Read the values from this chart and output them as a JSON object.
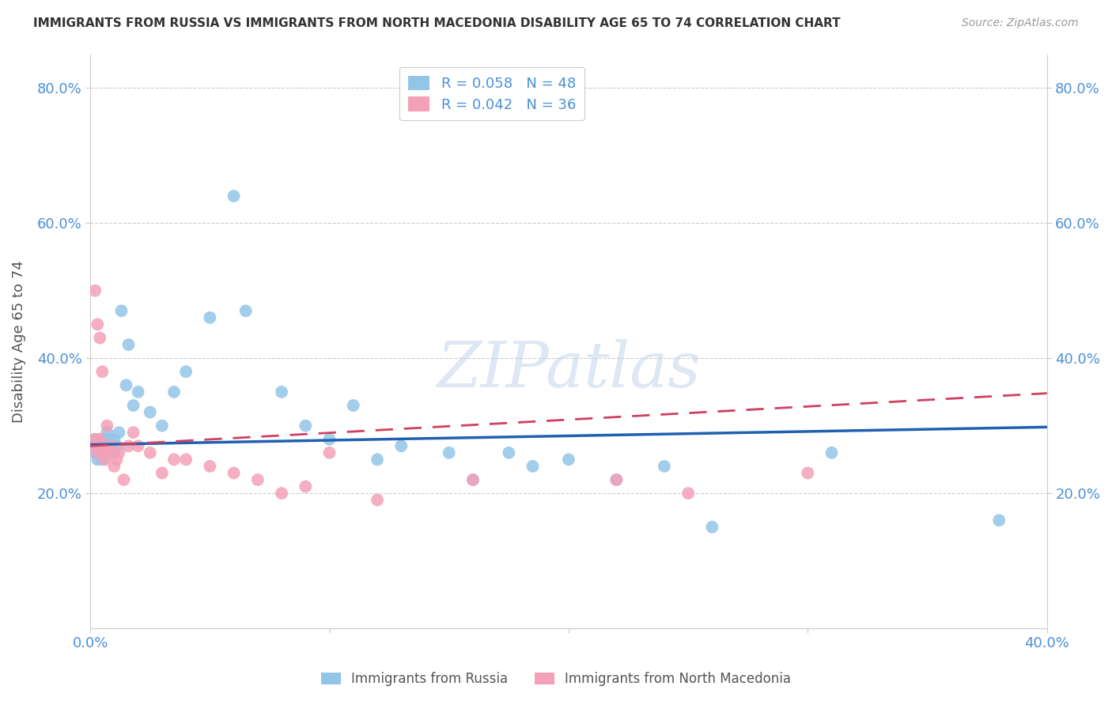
{
  "title": "IMMIGRANTS FROM RUSSIA VS IMMIGRANTS FROM NORTH MACEDONIA DISABILITY AGE 65 TO 74 CORRELATION CHART",
  "source": "Source: ZipAtlas.com",
  "ylabel": "Disability Age 65 to 74",
  "xlim": [
    0.0,
    0.4
  ],
  "ylim": [
    0.0,
    0.85
  ],
  "xticks": [
    0.0,
    0.1,
    0.2,
    0.3,
    0.4
  ],
  "yticks": [
    0.2,
    0.4,
    0.6,
    0.8
  ],
  "xticklabels": [
    "0.0%",
    "",
    "",
    "",
    "40.0%"
  ],
  "yticklabels": [
    "20.0%",
    "40.0%",
    "60.0%",
    "80.0%"
  ],
  "blue_R": 0.058,
  "blue_N": 48,
  "pink_R": 0.042,
  "pink_N": 36,
  "legend1_label": "Immigrants from Russia",
  "legend2_label": "Immigrants from North Macedonia",
  "watermark": "ZIPatlas",
  "blue_color": "#92C5E8",
  "pink_color": "#F4A0B8",
  "blue_line_color": "#2060B0",
  "pink_line_color": "#D04060",
  "background_color": "#FFFFFF",
  "grid_color": "#CCCCCC",
  "title_color": "#333333",
  "axis_label_color": "#555555",
  "tick_color": "#4A90D9",
  "blue_x": [
    0.001,
    0.002,
    0.002,
    0.003,
    0.003,
    0.004,
    0.004,
    0.005,
    0.005,
    0.006,
    0.006,
    0.007,
    0.007,
    0.008,
    0.008,
    0.009,
    0.01,
    0.01,
    0.011,
    0.012,
    0.013,
    0.015,
    0.016,
    0.018,
    0.02,
    0.025,
    0.03,
    0.035,
    0.04,
    0.05,
    0.06,
    0.065,
    0.08,
    0.09,
    0.1,
    0.11,
    0.12,
    0.13,
    0.15,
    0.16,
    0.175,
    0.185,
    0.2,
    0.22,
    0.24,
    0.26,
    0.31,
    0.38
  ],
  "blue_y": [
    0.27,
    0.26,
    0.28,
    0.27,
    0.25,
    0.28,
    0.26,
    0.27,
    0.25,
    0.28,
    0.26,
    0.27,
    0.29,
    0.26,
    0.28,
    0.27,
    0.26,
    0.28,
    0.27,
    0.29,
    0.47,
    0.36,
    0.42,
    0.33,
    0.35,
    0.32,
    0.3,
    0.35,
    0.38,
    0.46,
    0.64,
    0.47,
    0.35,
    0.3,
    0.28,
    0.33,
    0.25,
    0.27,
    0.26,
    0.22,
    0.26,
    0.24,
    0.25,
    0.22,
    0.24,
    0.15,
    0.26,
    0.16
  ],
  "pink_x": [
    0.001,
    0.002,
    0.002,
    0.003,
    0.003,
    0.004,
    0.004,
    0.005,
    0.005,
    0.006,
    0.006,
    0.007,
    0.008,
    0.009,
    0.01,
    0.011,
    0.012,
    0.014,
    0.016,
    0.018,
    0.02,
    0.025,
    0.03,
    0.035,
    0.04,
    0.05,
    0.06,
    0.07,
    0.08,
    0.09,
    0.1,
    0.12,
    0.16,
    0.22,
    0.25,
    0.3
  ],
  "pink_y": [
    0.27,
    0.28,
    0.5,
    0.26,
    0.45,
    0.28,
    0.43,
    0.27,
    0.38,
    0.26,
    0.25,
    0.3,
    0.26,
    0.27,
    0.24,
    0.25,
    0.26,
    0.22,
    0.27,
    0.29,
    0.27,
    0.26,
    0.23,
    0.25,
    0.25,
    0.24,
    0.23,
    0.22,
    0.2,
    0.21,
    0.26,
    0.19,
    0.22,
    0.22,
    0.2,
    0.23
  ],
  "blue_trend": [
    0.272,
    0.298
  ],
  "pink_trend": [
    0.27,
    0.348
  ]
}
